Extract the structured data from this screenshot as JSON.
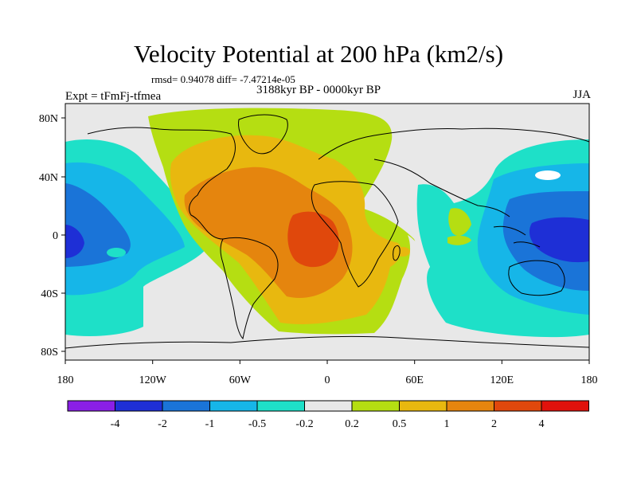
{
  "title": "Velocity Potential at 200 hPa (km2/s)",
  "stats_line": "rmsd= 0.94078 diff= -7.47214e-05",
  "period": "3188kyr BP - 0000kyr BP",
  "experiment": "Expt = tFmFj-tfmea",
  "season": "JJA",
  "axes": {
    "x_ticks": [
      "180",
      "120W",
      "60W",
      "0",
      "60E",
      "120E",
      "180"
    ],
    "y_ticks": [
      "80N",
      "40N",
      "0",
      "40S",
      "80S"
    ]
  },
  "colorbar": {
    "colors": [
      "#8a1fe6",
      "#1e2fd6",
      "#1a74d8",
      "#16b6e8",
      "#1ee0c8",
      "#e8e8e8",
      "#b5de12",
      "#e8b80f",
      "#e5850e",
      "#e0480c",
      "#e0120c"
    ],
    "labels": [
      "-4",
      "-2",
      "-1",
      "-0.5",
      "-0.2",
      "0.2",
      "0.5",
      "1",
      "2",
      "4"
    ]
  },
  "chart_data": {
    "type": "heatmap",
    "title": "Velocity Potential at 200 hPa (km2/s)",
    "lon_range": [
      -180,
      180
    ],
    "lat_range": [
      -90,
      90
    ],
    "levels": [
      -4,
      -2,
      -1,
      -0.5,
      -0.2,
      0.2,
      0.5,
      1,
      2,
      4
    ],
    "rmsd": 0.94078,
    "diff": -7.47214e-05
  }
}
